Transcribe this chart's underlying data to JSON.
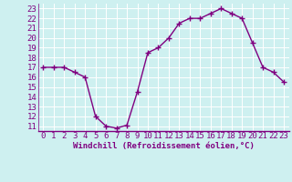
{
  "x": [
    0,
    1,
    2,
    3,
    4,
    5,
    6,
    7,
    8,
    9,
    10,
    11,
    12,
    13,
    14,
    15,
    16,
    17,
    18,
    19,
    20,
    21,
    22,
    23
  ],
  "y": [
    17,
    17,
    17,
    16.5,
    16,
    12,
    11,
    10.8,
    11.1,
    14.5,
    18.5,
    19,
    20,
    21.5,
    22,
    22,
    22.5,
    23,
    22.5,
    22,
    19.5,
    17,
    16.5,
    15.5
  ],
  "line_color": "#800080",
  "marker": "+",
  "markersize": 4,
  "linewidth": 1.0,
  "xlabel": "Windchill (Refroidissement éolien,°C)",
  "yticks": [
    11,
    12,
    13,
    14,
    15,
    16,
    17,
    18,
    19,
    20,
    21,
    22,
    23
  ],
  "xlim": [
    -0.5,
    23.5
  ],
  "ylim": [
    10.5,
    23.5
  ],
  "bg_color": "#cef0f0",
  "grid_color": "#aadddd",
  "line_grid_color": "#ffffff",
  "tick_label_color": "#800080",
  "xlabel_color": "#800080",
  "xlabel_fontsize": 6.5,
  "tick_fontsize": 6.5
}
